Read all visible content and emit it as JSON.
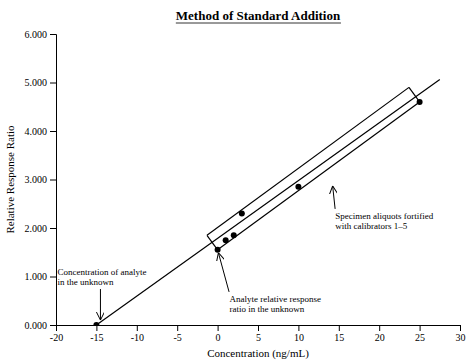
{
  "chart_data": {
    "type": "scatter",
    "title": "Method of Standard Addition",
    "x_label": "Concentration (ng/mL)",
    "y_label": "Relative Response Ratio",
    "xlim": [
      -20.0,
      30.0
    ],
    "ylim": [
      0.0,
      6.0
    ],
    "xticks": [
      -20,
      -15,
      -10,
      -5,
      0,
      5,
      10,
      15,
      20,
      25,
      30
    ],
    "yticks": [
      {
        "value": 0.0,
        "label": "0.000"
      },
      {
        "value": 1.0,
        "label": "1.000"
      },
      {
        "value": 2.0,
        "label": "2.000"
      },
      {
        "value": 3.0,
        "label": "3.000"
      },
      {
        "value": 4.0,
        "label": "4.000"
      },
      {
        "value": 5.0,
        "label": "5.000"
      },
      {
        "value": 6.0,
        "label": "6.000"
      }
    ],
    "grid": false,
    "series": [
      {
        "type": "line",
        "color": "#000000",
        "x": [
          -15.0,
          27.5
        ],
        "values": [
          0.0,
          5.06
        ]
      },
      {
        "type": "scatter",
        "color": "#000000",
        "x": [
          -15.0,
          0.0,
          1.0,
          2.0,
          3.0,
          10.0,
          25.0
        ],
        "values": [
          0.0,
          1.55,
          1.75,
          1.85,
          2.3,
          2.85,
          4.6
        ]
      }
    ],
    "bracket": {
      "color": "#000000",
      "x": [
        0.0,
        25.0
      ],
      "values": [
        1.55,
        4.6
      ]
    },
    "annotations": [
      {
        "text": "Analyte relative response\nratio in the unknown",
        "x": 0.0,
        "y": 1.55,
        "color": "#000000"
      },
      {
        "text": "Concentration of analyte\nin the unknown",
        "x": -14.5,
        "y": 0.04,
        "color": "#000000"
      },
      {
        "text": "Specimen aliquots fortified\nwith calibrators 1–5",
        "x": 14.2,
        "y": 2.93,
        "color": "#000000"
      }
    ]
  }
}
